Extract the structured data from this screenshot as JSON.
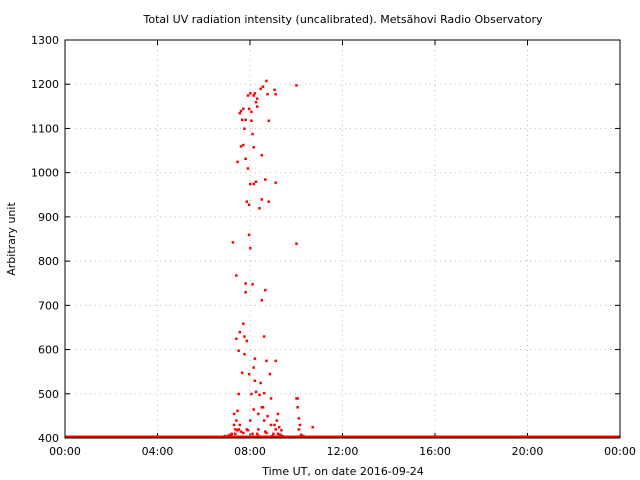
{
  "chart_data": {
    "type": "scatter",
    "title": "Total UV radiation intensity (uncalibrated). Metsähovi Radio Observatory",
    "xlabel": "Time UT, on date 2016-09-24",
    "ylabel": "Arbitrary unit",
    "x_ticks": [
      "00:00",
      "04:00",
      "08:00",
      "12:00",
      "16:00",
      "20:00",
      "00:00"
    ],
    "xlim": [
      0,
      24
    ],
    "ylim": [
      400,
      1300
    ],
    "y_ticks": [
      400,
      500,
      600,
      700,
      800,
      900,
      1000,
      1100,
      1200,
      1300
    ],
    "grid": true,
    "marker_color": "#ff0000",
    "baseline": {
      "y": 400,
      "x_from": 0,
      "x_to": 24
    },
    "points": [
      [
        7.15,
        408
      ],
      [
        7.25,
        843
      ],
      [
        7.3,
        455
      ],
      [
        7.35,
        420
      ],
      [
        7.4,
        768
      ],
      [
        7.4,
        625
      ],
      [
        7.45,
        1025
      ],
      [
        7.45,
        462
      ],
      [
        7.5,
        598
      ],
      [
        7.5,
        500
      ],
      [
        7.55,
        1135
      ],
      [
        7.55,
        640
      ],
      [
        7.6,
        1140
      ],
      [
        7.6,
        1060
      ],
      [
        7.65,
        1120
      ],
      [
        7.65,
        548
      ],
      [
        7.7,
        1145
      ],
      [
        7.7,
        1063
      ],
      [
        7.7,
        659
      ],
      [
        7.75,
        1100
      ],
      [
        7.75,
        630
      ],
      [
        7.75,
        590
      ],
      [
        7.8,
        1120
      ],
      [
        7.8,
        1032
      ],
      [
        7.8,
        750
      ],
      [
        7.8,
        730
      ],
      [
        7.85,
        935
      ],
      [
        7.85,
        620
      ],
      [
        7.9,
        1175
      ],
      [
        7.9,
        1010
      ],
      [
        7.95,
        1145
      ],
      [
        7.95,
        860
      ],
      [
        7.95,
        928
      ],
      [
        8.0,
        1180
      ],
      [
        8.0,
        975
      ],
      [
        8.0,
        830
      ],
      [
        8.05,
        1138
      ],
      [
        8.05,
        1118
      ],
      [
        8.1,
        1088
      ],
      [
        8.1,
        748
      ],
      [
        8.15,
        1175
      ],
      [
        8.15,
        1058
      ],
      [
        8.15,
        975
      ],
      [
        8.15,
        560
      ],
      [
        8.2,
        1180
      ],
      [
        8.2,
        580
      ],
      [
        8.25,
        1160
      ],
      [
        8.25,
        980
      ],
      [
        8.3,
        1168
      ],
      [
        8.3,
        1150
      ],
      [
        8.35,
        455
      ],
      [
        8.4,
        920
      ],
      [
        8.45,
        1190
      ],
      [
        8.5,
        1040
      ],
      [
        8.5,
        940
      ],
      [
        8.5,
        712
      ],
      [
        8.55,
        1195
      ],
      [
        8.6,
        630
      ],
      [
        8.65,
        985
      ],
      [
        8.65,
        735
      ],
      [
        8.7,
        1208
      ],
      [
        8.7,
        575
      ],
      [
        8.75,
        1178
      ],
      [
        8.8,
        1118
      ],
      [
        8.8,
        935
      ],
      [
        8.9,
        490
      ],
      [
        9.05,
        1188
      ],
      [
        9.1,
        1178
      ],
      [
        9.1,
        978
      ],
      [
        9.1,
        575
      ],
      [
        9.2,
        455
      ],
      [
        10.0,
        1198
      ],
      [
        10.0,
        840
      ],
      [
        10.0,
        490
      ],
      [
        10.05,
        490
      ],
      [
        10.05,
        470
      ],
      [
        10.1,
        445
      ],
      [
        10.1,
        420
      ],
      [
        10.15,
        430
      ],
      [
        10.2,
        408
      ],
      [
        10.7,
        425
      ],
      [
        7.3,
        430
      ],
      [
        7.4,
        440
      ],
      [
        7.5,
        420
      ],
      [
        7.6,
        415
      ],
      [
        7.7,
        412
      ],
      [
        7.9,
        418
      ],
      [
        8.0,
        440
      ],
      [
        8.1,
        410
      ],
      [
        8.3,
        410
      ],
      [
        8.35,
        405
      ],
      [
        8.4,
        498
      ],
      [
        8.45,
        525
      ],
      [
        8.5,
        470
      ],
      [
        8.6,
        502
      ],
      [
        8.6,
        440
      ],
      [
        8.7,
        412
      ],
      [
        8.8,
        395
      ],
      [
        8.9,
        430
      ],
      [
        9.0,
        410
      ],
      [
        9.1,
        420
      ],
      [
        9.2,
        410
      ],
      [
        9.3,
        408
      ],
      [
        9.4,
        405
      ],
      [
        7.35,
        410
      ],
      [
        7.55,
        430
      ],
      [
        7.85,
        420
      ],
      [
        8.2,
        530
      ],
      [
        8.25,
        505
      ],
      [
        8.55,
        470
      ],
      [
        8.65,
        415
      ],
      [
        8.75,
        450
      ],
      [
        8.85,
        545
      ],
      [
        9.05,
        430
      ],
      [
        9.25,
        425
      ],
      [
        7.2,
        410
      ],
      [
        7.05,
        406
      ],
      [
        7.45,
        418
      ],
      [
        7.95,
        545
      ],
      [
        8.05,
        500
      ],
      [
        8.15,
        465
      ],
      [
        8.35,
        420
      ],
      [
        8.95,
        405
      ],
      [
        9.15,
        440
      ],
      [
        9.35,
        418
      ],
      [
        10.3,
        405
      ],
      [
        10.6,
        403
      ],
      [
        6.9,
        405
      ],
      [
        6.75,
        403
      ],
      [
        3.9,
        403
      ],
      [
        4.4,
        403
      ],
      [
        4.9,
        403
      ],
      [
        1.9,
        403
      ]
    ]
  }
}
